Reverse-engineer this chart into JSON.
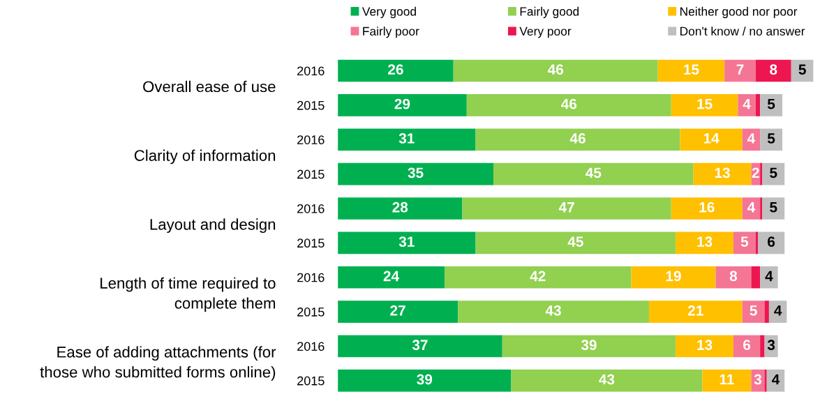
{
  "chart_data": {
    "type": "bar",
    "orientation": "horizontal",
    "stacked": true,
    "categories": [
      "2016",
      "2015",
      "2016",
      "2015",
      "2016",
      "2015",
      "2016",
      "2015",
      "2016",
      "2015"
    ],
    "annotations": [
      "Overall ease of use",
      "Clarity of information",
      "Layout and design",
      "Length of time required to\ncomplete them",
      "Ease of adding attachments (for\nthose who submitted forms online)"
    ],
    "series": [
      {
        "name": "Very good",
        "color": "#00b050",
        "values": [
          26,
          29,
          31,
          35,
          28,
          31,
          24,
          27,
          37,
          39
        ],
        "value_labels": [
          "26",
          "29",
          "31",
          "35",
          "28",
          "31",
          "24",
          "27",
          "37",
          "39"
        ]
      },
      {
        "name": "Fairly good",
        "color": "#92d050",
        "values": [
          46,
          46,
          46,
          45,
          47,
          45,
          42,
          43,
          39,
          43
        ],
        "value_labels": [
          "46",
          "46",
          "46",
          "45",
          "47",
          "45",
          "42",
          "43",
          "39",
          "43"
        ]
      },
      {
        "name": "Neither good nor poor",
        "color": "#ffc000",
        "values": [
          15,
          15,
          14,
          13,
          16,
          13,
          19,
          21,
          13,
          11
        ],
        "value_labels": [
          "15",
          "15",
          "14",
          "13",
          "16",
          "13",
          "19",
          "21",
          "13",
          "11"
        ]
      },
      {
        "name": "Fairly poor",
        "color": "#f47694",
        "values": [
          7,
          4,
          4,
          2,
          4,
          5,
          8,
          5,
          6,
          3
        ],
        "value_labels": [
          "7",
          "4",
          "4",
          "2",
          "4",
          "5",
          "8",
          "5",
          "6",
          "3"
        ]
      },
      {
        "name": "Very poor",
        "color": "#ed1651",
        "values": [
          8,
          1,
          0,
          0.5,
          0.5,
          0.5,
          2,
          1,
          1,
          0.5
        ],
        "value_labels": [
          "8",
          null,
          null,
          null,
          null,
          null,
          null,
          null,
          null,
          null
        ]
      },
      {
        "name": "Don't know / no answer",
        "color": "#bfbfbf",
        "values": [
          5,
          5,
          5,
          5,
          5,
          6,
          4,
          4,
          3,
          4
        ],
        "value_labels": [
          "5",
          "5",
          "5",
          "5",
          "5",
          "6",
          "4",
          "4",
          "3",
          "4"
        ]
      }
    ],
    "xlim": [
      0,
      107
    ],
    "tick_labels": "y",
    "grid": false,
    "legend": "top"
  }
}
